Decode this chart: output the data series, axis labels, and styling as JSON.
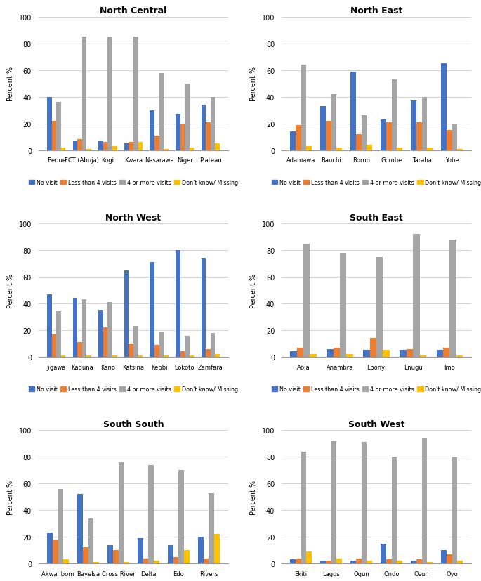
{
  "regions": [
    {
      "title": "North Central",
      "states": [
        "Benue",
        "FCT (Abuja)",
        "Kogi",
        "Kwara",
        "Nasarawa",
        "Niger",
        "Plateau"
      ],
      "no_visit": [
        40,
        7,
        7,
        5,
        30,
        27,
        34
      ],
      "less_than_4": [
        22,
        8,
        6,
        6,
        11,
        20,
        21
      ],
      "four_or_more": [
        36,
        85,
        85,
        85,
        58,
        50,
        40
      ],
      "dont_know": [
        2,
        1,
        3,
        6,
        1,
        2,
        5
      ]
    },
    {
      "title": "North East",
      "states": [
        "Adamawa",
        "Bauchi",
        "Borno",
        "Gombe",
        "Taraba",
        "Yobe"
      ],
      "no_visit": [
        14,
        33,
        59,
        23,
        37,
        65
      ],
      "less_than_4": [
        19,
        22,
        12,
        21,
        21,
        15
      ],
      "four_or_more": [
        64,
        42,
        26,
        53,
        40,
        20
      ],
      "dont_know": [
        3,
        2,
        4,
        2,
        2,
        1
      ]
    },
    {
      "title": "North West",
      "states": [
        "Jigawa",
        "Kaduna",
        "Kano",
        "Katsina",
        "Kebbi",
        "Sokoto",
        "Zamfara"
      ],
      "no_visit": [
        47,
        44,
        35,
        65,
        71,
        80,
        74
      ],
      "less_than_4": [
        17,
        11,
        22,
        10,
        9,
        4,
        6
      ],
      "four_or_more": [
        34,
        43,
        41,
        23,
        19,
        16,
        18
      ],
      "dont_know": [
        1,
        1,
        1,
        1,
        1,
        1,
        2
      ]
    },
    {
      "title": "South East",
      "states": [
        "Abia",
        "Anambra",
        "Ebonyi",
        "Enugu",
        "Imo"
      ],
      "no_visit": [
        4,
        6,
        5,
        5,
        5
      ],
      "less_than_4": [
        7,
        7,
        14,
        6,
        7
      ],
      "four_or_more": [
        85,
        78,
        75,
        92,
        88
      ],
      "dont_know": [
        2,
        2,
        5,
        1,
        1
      ]
    },
    {
      "title": "South South",
      "states": [
        "Akwa Ibom",
        "Bayelsa",
        "Cross River",
        "Delta",
        "Edo",
        "Rivers"
      ],
      "no_visit": [
        23,
        52,
        14,
        19,
        14,
        20
      ],
      "less_than_4": [
        18,
        12,
        10,
        4,
        5,
        4
      ],
      "four_or_more": [
        56,
        34,
        76,
        74,
        70,
        53
      ],
      "dont_know": [
        3,
        1,
        1,
        2,
        10,
        22
      ]
    },
    {
      "title": "South West",
      "states": [
        "Ekiti",
        "Lagos",
        "Ogun",
        "Ondo",
        "Osun",
        "Oyo"
      ],
      "no_visit": [
        3,
        2,
        2,
        15,
        2,
        10
      ],
      "less_than_4": [
        4,
        2,
        4,
        3,
        3,
        7
      ],
      "four_or_more": [
        84,
        92,
        91,
        80,
        94,
        80
      ],
      "dont_know": [
        9,
        4,
        2,
        2,
        1,
        2
      ]
    }
  ],
  "colors": {
    "no_visit": "#4472C4",
    "less_than_4": "#ED7D31",
    "four_or_more": "#A5A5A5",
    "dont_know": "#FFC000"
  },
  "legend_labels": [
    "No visit",
    "Less than 4 visits",
    "4 or more visits",
    "Don't know/ Missing"
  ],
  "ylabel": "Percent %",
  "ylim": [
    0,
    100
  ],
  "yticks": [
    0,
    20,
    40,
    60,
    80,
    100
  ]
}
